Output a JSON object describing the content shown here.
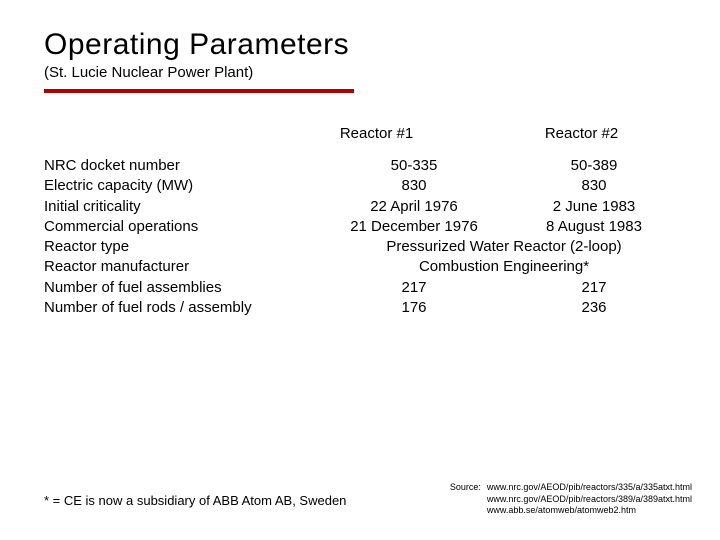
{
  "title": "Operating Parameters",
  "subtitle": "(St. Lucie Nuclear Power Plant)",
  "accent_color": "#b00000",
  "columns": {
    "c1": "Reactor #1",
    "c2": "Reactor #2"
  },
  "rows": {
    "r1": {
      "label": "NRC docket number",
      "v1": "50-335",
      "v2": "50-389"
    },
    "r2": {
      "label": "Electric capacity (MW)",
      "v1": "830",
      "v2": "830"
    },
    "r3": {
      "label": "Initial criticality",
      "v1": "22 April 1976",
      "v2": "2 June 1983"
    },
    "r4": {
      "label": "Commercial operations",
      "v1": "21 December 1976",
      "v2": "8 August 1983"
    },
    "r5": {
      "label": "Reactor type",
      "span": "Pressurized Water Reactor (2-loop)"
    },
    "r6": {
      "label": "Reactor manufacturer",
      "span": "Combustion Engineering*"
    },
    "r7": {
      "label": "Number of fuel assemblies",
      "v1": "217",
      "v2": "217"
    },
    "r8": {
      "label": "Number of fuel rods / assembly",
      "v1": "176",
      "v2": "236"
    }
  },
  "footnote": "* = CE is now a subsidiary of ABB Atom AB, Sweden",
  "source": {
    "label": "Source:",
    "s1": "www.nrc.gov/AEOD/pib/reactors/335/a/335atxt.html",
    "s2": "www.nrc.gov/AEOD/pib/reactors/389/a/389atxt.html",
    "s3": "www.abb.se/atomweb/atomweb2.htm"
  }
}
